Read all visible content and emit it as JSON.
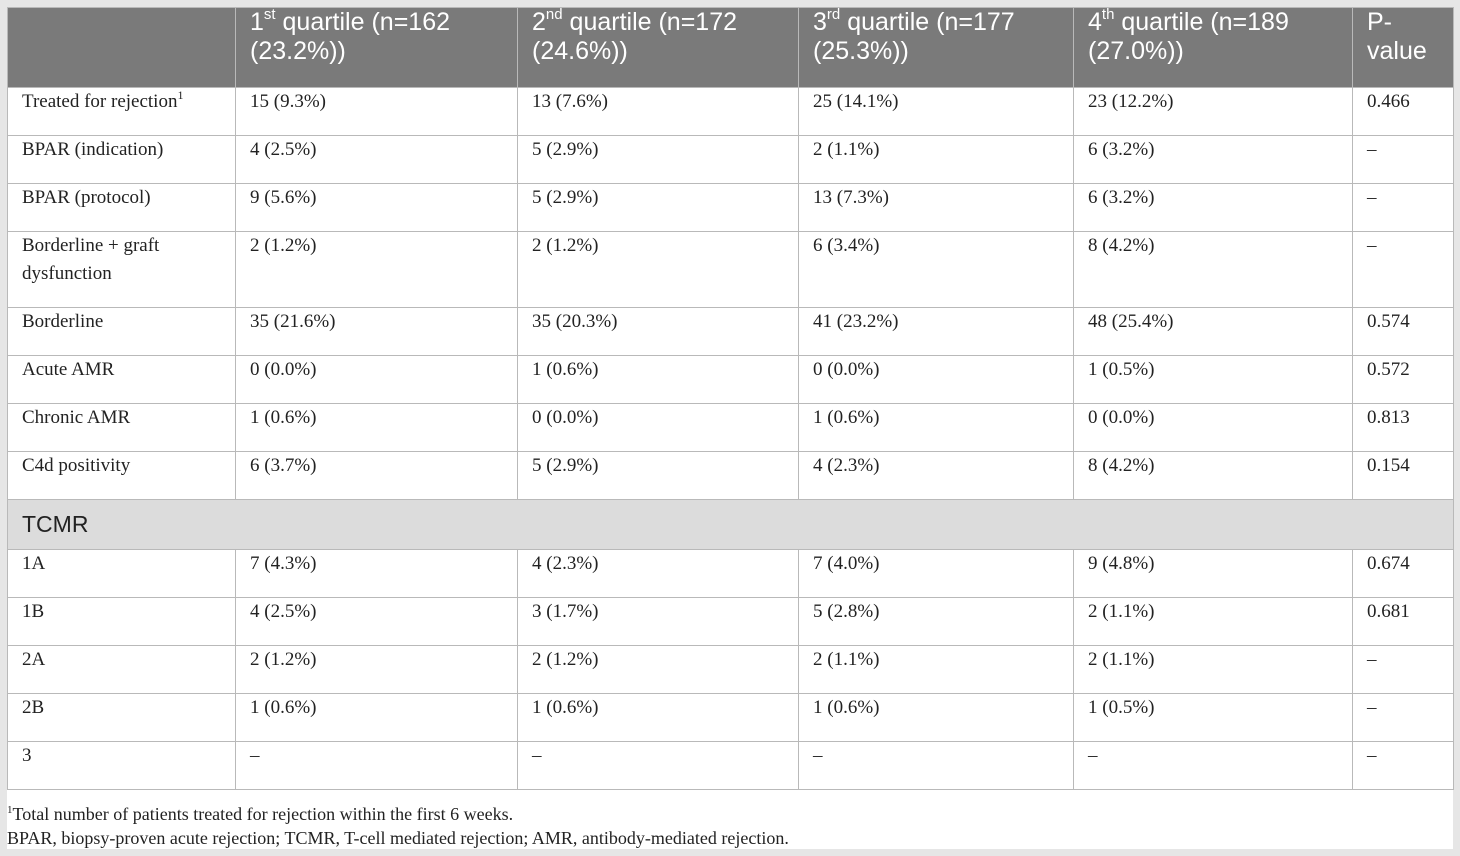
{
  "table": {
    "header": {
      "col0": "",
      "cols": [
        {
          "ord": "1",
          "sup": "st",
          "rest": " quartile (n=162 (23.2%))"
        },
        {
          "ord": "2",
          "sup": "nd",
          "rest": " quartile (n=172 (24.6%))"
        },
        {
          "ord": "3",
          "sup": "rd",
          "rest": " quartile (n=177 (25.3%))"
        },
        {
          "ord": "4",
          "sup": "th",
          "rest": " quartile (n=189 (27.0%))"
        }
      ],
      "pvalue": "P-value"
    },
    "rows": [
      {
        "label": "Treated for rejection",
        "sup": "1",
        "q1": "15 (9.3%)",
        "q2": "13 (7.6%)",
        "q3": "25 (14.1%)",
        "q4": "23 (12.2%)",
        "p": "0.466"
      },
      {
        "label": "BPAR (indication)",
        "q1": "4 (2.5%)",
        "q2": "5 (2.9%)",
        "q3": "2 (1.1%)",
        "q4": "6 (3.2%)",
        "p": "–"
      },
      {
        "label": "BPAR (protocol)",
        "q1": "9 (5.6%)",
        "q2": "5 (2.9%)",
        "q3": "13 (7.3%)",
        "q4": "6 (3.2%)",
        "p": "–"
      },
      {
        "label": "Borderline + graft dysfunction",
        "q1": "2 (1.2%)",
        "q2": "2 (1.2%)",
        "q3": "6 (3.4%)",
        "q4": "8 (4.2%)",
        "p": "–"
      },
      {
        "label": "Borderline",
        "q1": "35 (21.6%)",
        "q2": "35 (20.3%)",
        "q3": "41 (23.2%)",
        "q4": "48 (25.4%)",
        "p": "0.574"
      },
      {
        "label": "Acute AMR",
        "q1": "0 (0.0%)",
        "q2": "1 (0.6%)",
        "q3": "0 (0.0%)",
        "q4": "1 (0.5%)",
        "p": "0.572"
      },
      {
        "label": "Chronic AMR",
        "q1": "1 (0.6%)",
        "q2": "0 (0.0%)",
        "q3": "1 (0.6%)",
        "q4": "0 (0.0%)",
        "p": "0.813"
      },
      {
        "label": "C4d positivity",
        "q1": "6 (3.7%)",
        "q2": "5 (2.9%)",
        "q3": "4 (2.3%)",
        "q4": "8 (4.2%)",
        "p": "0.154"
      }
    ],
    "section": "TCMR",
    "tcmr_rows": [
      {
        "label": "1A",
        "q1": "7 (4.3%)",
        "q2": "4 (2.3%)",
        "q3": "7 (4.0%)",
        "q4": "9 (4.8%)",
        "p": "0.674"
      },
      {
        "label": "1B",
        "q1": "4 (2.5%)",
        "q2": "3 (1.7%)",
        "q3": "5 (2.8%)",
        "q4": "2 (1.1%)",
        "p": "0.681"
      },
      {
        "label": "2A",
        "q1": "2 (1.2%)",
        "q2": "2 (1.2%)",
        "q3": "2 (1.1%)",
        "q4": "2 (1.1%)",
        "p": "–"
      },
      {
        "label": "2B",
        "q1": "1 (0.6%)",
        "q2": "1 (0.6%)",
        "q3": "1 (0.6%)",
        "q4": "1 (0.5%)",
        "p": "–"
      },
      {
        "label": "3",
        "q1": "–",
        "q2": "–",
        "q3": "–",
        "q4": "–",
        "p": "–"
      }
    ]
  },
  "notes": {
    "footnote_marker": "1",
    "footnote": "Total number of patients treated for rejection within the first 6 weeks.",
    "abbreviations": "BPAR, biopsy-proven acute rejection; TCMR, T-cell mediated rejection; AMR, antibody-mediated rejection."
  },
  "colors": {
    "header_bg": "#7a7a7a",
    "section_bg": "#dcdcdc",
    "border": "#b9b9b9",
    "page_bg": "#e6e6e6"
  }
}
